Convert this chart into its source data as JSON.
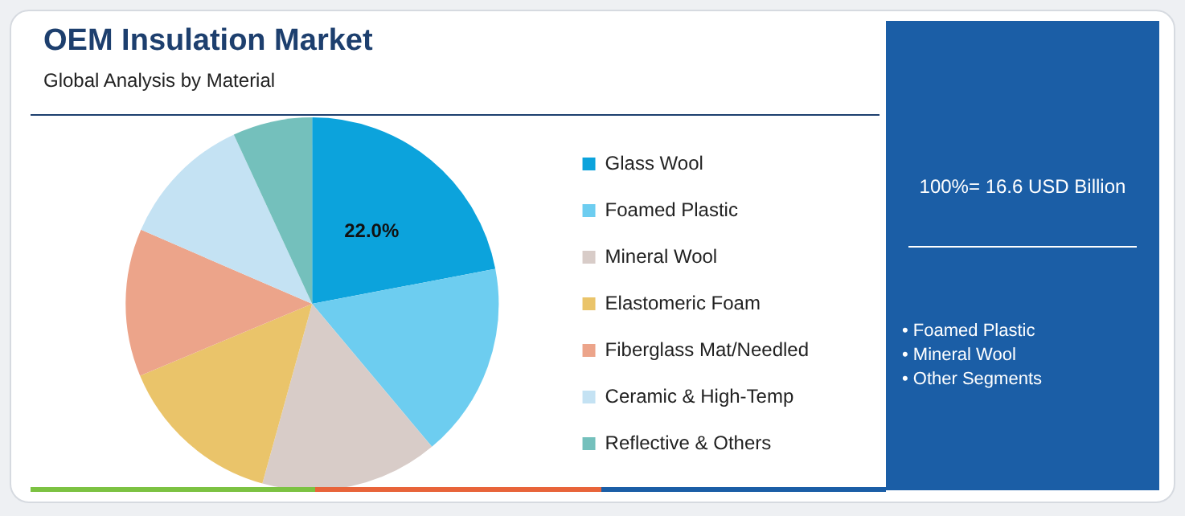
{
  "chart_data": {
    "type": "pie",
    "title": "OEM Insulation Market",
    "subtitle": "Global Analysis by Material",
    "categories": [
      "Glass Wool",
      "Foamed Plastic",
      "Mineral Wool",
      "Elastomeric Foam",
      "Fiberglass Mat/Needled",
      "Ceramic & High-Temp",
      "Reflective & Others"
    ],
    "values": [
      22.0,
      16.9,
      15.4,
      14.4,
      12.8,
      11.6,
      6.9
    ],
    "colors": [
      "#0ca3dc",
      "#6dcdf0",
      "#d8ccc8",
      "#eac46a",
      "#eca48a",
      "#c4e2f3",
      "#74c0bc"
    ],
    "value_labels": [
      "22.0%",
      null,
      null,
      null,
      null,
      null,
      null
    ],
    "legend": "right",
    "annotations": [
      "100%= 16.6 USD Billion",
      "• Foamed Plastic",
      "• Mineral Wool",
      "• Other Segments"
    ]
  }
}
